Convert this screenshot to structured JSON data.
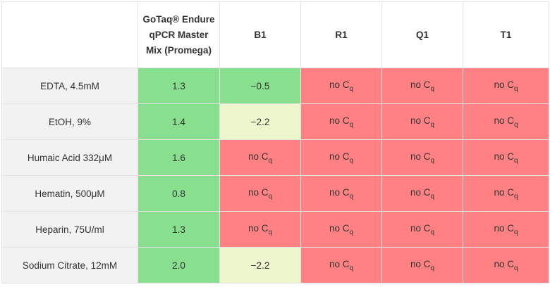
{
  "table": {
    "headers": [
      "",
      "GoTaq® Endure qPCR Master Mix (Promega)",
      "B1",
      "R1",
      "Q1",
      "T1"
    ],
    "no_cq_text": "no C",
    "no_cq_sub": "q",
    "colors": {
      "green": "#88e08f",
      "yellow": "#eef6cd",
      "red": "#ff8183",
      "label_bg": "#f2f2f2"
    },
    "rows": [
      {
        "label": "EDTA, 4.5mM",
        "cells": [
          {
            "value": "1.3",
            "color": "green"
          },
          {
            "value": "-0.5",
            "color": "green"
          },
          {
            "value": "no Cq",
            "color": "red"
          },
          {
            "value": "no Cq",
            "color": "red"
          },
          {
            "value": "no Cq",
            "color": "red"
          }
        ]
      },
      {
        "label": "EtOH, 9%",
        "cells": [
          {
            "value": "1.4",
            "color": "green"
          },
          {
            "value": "-2.2",
            "color": "yellow"
          },
          {
            "value": "no Cq",
            "color": "red"
          },
          {
            "value": "no Cq",
            "color": "red"
          },
          {
            "value": "no Cq",
            "color": "red"
          }
        ]
      },
      {
        "label": "Humaic Acid 332μM",
        "cells": [
          {
            "value": "1.6",
            "color": "green"
          },
          {
            "value": "no Cq",
            "color": "red"
          },
          {
            "value": "no Cq",
            "color": "red"
          },
          {
            "value": "no Cq",
            "color": "red"
          },
          {
            "value": "no Cq",
            "color": "red"
          }
        ]
      },
      {
        "label": "Hematin, 500μM",
        "cells": [
          {
            "value": "0.8",
            "color": "green"
          },
          {
            "value": "no Cq",
            "color": "red"
          },
          {
            "value": "no Cq",
            "color": "red"
          },
          {
            "value": "no Cq",
            "color": "red"
          },
          {
            "value": "no Cq",
            "color": "red"
          }
        ]
      },
      {
        "label": "Heparin, 75U/ml",
        "cells": [
          {
            "value": "1.3",
            "color": "green"
          },
          {
            "value": "no Cq",
            "color": "red"
          },
          {
            "value": "no Cq",
            "color": "red"
          },
          {
            "value": "no Cq",
            "color": "red"
          },
          {
            "value": "no Cq",
            "color": "red"
          }
        ]
      },
      {
        "label": "Sodium Citrate, 12mM",
        "cells": [
          {
            "value": "2.0",
            "color": "green"
          },
          {
            "value": "-2.2",
            "color": "yellow"
          },
          {
            "value": "no Cq",
            "color": "red"
          },
          {
            "value": "no Cq",
            "color": "red"
          },
          {
            "value": "no Cq",
            "color": "red"
          }
        ]
      }
    ]
  }
}
